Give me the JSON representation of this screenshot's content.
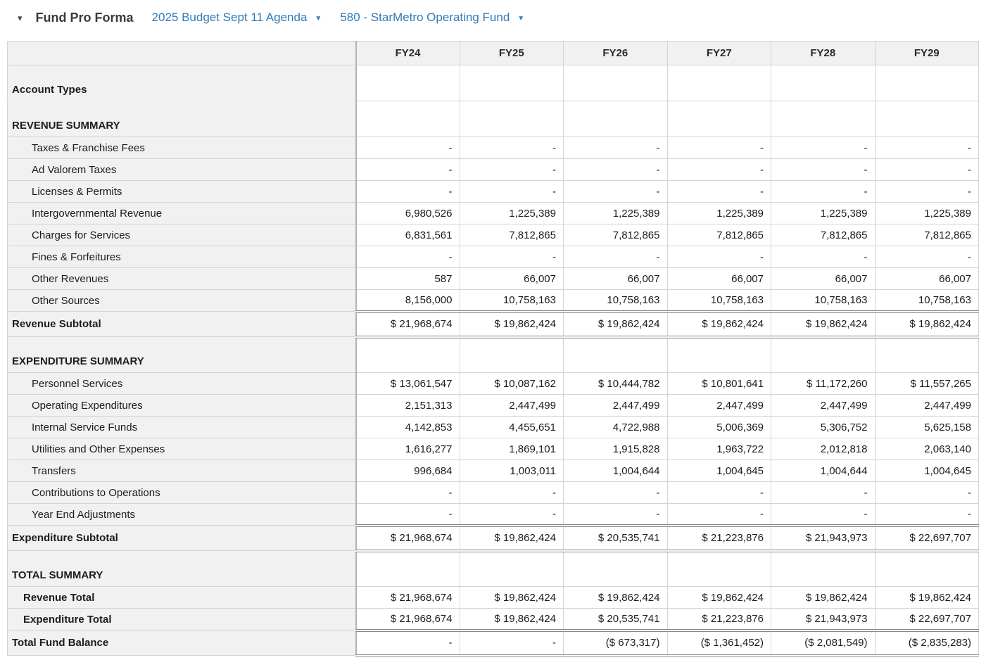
{
  "titlebar": {
    "collapse_icon": "▾",
    "title": "Fund Pro Forma",
    "budget_selector": "2025 Budget Sept 11 Agenda",
    "fund_selector": "580 - StarMetro Operating Fund",
    "dropdown_icon": "▼"
  },
  "colors": {
    "link_blue": "#2e7bbe",
    "panel_gray": "#f1f1f1",
    "grid_border": "#d4d4d4",
    "strong_border": "#868686"
  },
  "table": {
    "corner_label": "",
    "columns": [
      "FY24",
      "FY25",
      "FY26",
      "FY27",
      "FY28",
      "FY29"
    ],
    "rows": [
      {
        "type": "section",
        "no_label_border": true,
        "label": "Account Types",
        "values": [
          "",
          "",
          "",
          "",
          "",
          ""
        ]
      },
      {
        "type": "section",
        "label": "REVENUE SUMMARY",
        "values": [
          "",
          "",
          "",
          "",
          "",
          ""
        ]
      },
      {
        "type": "detail",
        "label": "Taxes & Franchise Fees",
        "values": [
          "-",
          "-",
          "-",
          "-",
          "-",
          "-"
        ]
      },
      {
        "type": "detail",
        "label": "Ad Valorem Taxes",
        "values": [
          "-",
          "-",
          "-",
          "-",
          "-",
          "-"
        ]
      },
      {
        "type": "detail",
        "label": "Licenses & Permits",
        "values": [
          "-",
          "-",
          "-",
          "-",
          "-",
          "-"
        ]
      },
      {
        "type": "detail",
        "label": "Intergovernmental Revenue",
        "values": [
          "6,980,526",
          "1,225,389",
          "1,225,389",
          "1,225,389",
          "1,225,389",
          "1,225,389"
        ]
      },
      {
        "type": "detail",
        "label": "Charges for Services",
        "values": [
          "6,831,561",
          "7,812,865",
          "7,812,865",
          "7,812,865",
          "7,812,865",
          "7,812,865"
        ]
      },
      {
        "type": "detail",
        "label": "Fines & Forfeitures",
        "values": [
          "-",
          "-",
          "-",
          "-",
          "-",
          "-"
        ]
      },
      {
        "type": "detail",
        "label": "Other Revenues",
        "values": [
          "587",
          "66,007",
          "66,007",
          "66,007",
          "66,007",
          "66,007"
        ]
      },
      {
        "type": "detail",
        "label": "Other Sources",
        "values": [
          "8,156,000",
          "10,758,163",
          "10,758,163",
          "10,758,163",
          "10,758,163",
          "10,758,163"
        ]
      },
      {
        "type": "subtotal",
        "label": "Revenue Subtotal",
        "values": [
          "$ 21,968,674",
          "$ 19,862,424",
          "$ 19,862,424",
          "$ 19,862,424",
          "$ 19,862,424",
          "$ 19,862,424"
        ]
      },
      {
        "type": "section",
        "label": "EXPENDITURE SUMMARY",
        "values": [
          "",
          "",
          "",
          "",
          "",
          ""
        ]
      },
      {
        "type": "detail",
        "label": "Personnel Services",
        "values": [
          "$ 13,061,547",
          "$ 10,087,162",
          "$ 10,444,782",
          "$ 10,801,641",
          "$ 11,172,260",
          "$ 11,557,265"
        ]
      },
      {
        "type": "detail",
        "label": "Operating Expenditures",
        "values": [
          "2,151,313",
          "2,447,499",
          "2,447,499",
          "2,447,499",
          "2,447,499",
          "2,447,499"
        ]
      },
      {
        "type": "detail",
        "label": "Internal Service Funds",
        "values": [
          "4,142,853",
          "4,455,651",
          "4,722,988",
          "5,006,369",
          "5,306,752",
          "5,625,158"
        ]
      },
      {
        "type": "detail",
        "label": "Utilities and Other Expenses",
        "values": [
          "1,616,277",
          "1,869,101",
          "1,915,828",
          "1,963,722",
          "2,012,818",
          "2,063,140"
        ]
      },
      {
        "type": "detail",
        "label": "Transfers",
        "values": [
          "996,684",
          "1,003,011",
          "1,004,644",
          "1,004,645",
          "1,004,644",
          "1,004,645"
        ]
      },
      {
        "type": "detail",
        "label": "Contributions to Operations",
        "values": [
          "-",
          "-",
          "-",
          "-",
          "-",
          "-"
        ]
      },
      {
        "type": "detail",
        "label": "Year End Adjustments",
        "values": [
          "-",
          "-",
          "-",
          "-",
          "-",
          "-"
        ]
      },
      {
        "type": "subtotal",
        "label": "Expenditure Subtotal",
        "values": [
          "$ 21,968,674",
          "$ 19,862,424",
          "$ 20,535,741",
          "$ 21,223,876",
          "$ 21,943,973",
          "$ 22,697,707"
        ]
      },
      {
        "type": "section",
        "label": "TOTAL SUMMARY",
        "values": [
          "",
          "",
          "",
          "",
          "",
          ""
        ]
      },
      {
        "type": "total",
        "label": "Revenue Total",
        "values": [
          "$ 21,968,674",
          "$ 19,862,424",
          "$ 19,862,424",
          "$ 19,862,424",
          "$ 19,862,424",
          "$ 19,862,424"
        ]
      },
      {
        "type": "total",
        "label": "Expenditure Total",
        "values": [
          "$ 21,968,674",
          "$ 19,862,424",
          "$ 20,535,741",
          "$ 21,223,876",
          "$ 21,943,973",
          "$ 22,697,707"
        ]
      },
      {
        "type": "subtotal",
        "label": "Total Fund Balance",
        "values": [
          "-",
          "-",
          "($ 673,317)",
          "($ 1,361,452)",
          "($ 2,081,549)",
          "($ 2,835,283)"
        ]
      }
    ]
  }
}
